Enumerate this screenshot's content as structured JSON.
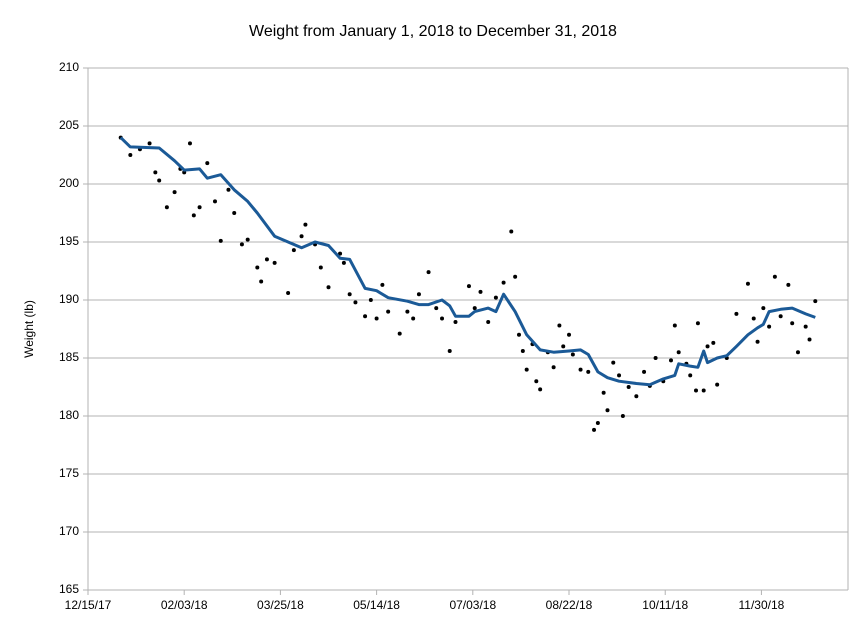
{
  "chart_data": {
    "type": "scatter",
    "title": "Weight from January 1, 2018 to December 31, 2018",
    "y_label": "Weight (lb)",
    "xlim": [
      "2017-12-15",
      "2019-01-14"
    ],
    "xticks": [
      {
        "value": "2017-12-15",
        "label": "12/15/17"
      },
      {
        "value": "2018-02-03",
        "label": "02/03/18"
      },
      {
        "value": "2018-03-25",
        "label": "03/25/18"
      },
      {
        "value": "2018-05-14",
        "label": "05/14/18"
      },
      {
        "value": "2018-07-03",
        "label": "07/03/18"
      },
      {
        "value": "2018-08-22",
        "label": "08/22/18"
      },
      {
        "value": "2018-10-11",
        "label": "10/11/18"
      },
      {
        "value": "2018-11-30",
        "label": "11/30/18"
      }
    ],
    "ylim": [
      165,
      210
    ],
    "yticks": [
      165,
      170,
      175,
      180,
      185,
      190,
      195,
      200,
      205,
      210
    ],
    "grid": true,
    "series": [
      {
        "mode": "markers",
        "color": "#000000",
        "x": [
          "2018-01-01",
          "2018-01-06",
          "2018-01-11",
          "2018-01-16",
          "2018-01-19",
          "2018-01-21",
          "2018-01-25",
          "2018-01-29",
          "2018-02-01",
          "2018-02-03",
          "2018-02-06",
          "2018-02-08",
          "2018-02-11",
          "2018-02-15",
          "2018-02-19",
          "2018-02-22",
          "2018-02-26",
          "2018-03-01",
          "2018-03-05",
          "2018-03-08",
          "2018-03-13",
          "2018-03-15",
          "2018-03-18",
          "2018-03-22",
          "2018-03-29",
          "2018-04-01",
          "2018-04-05",
          "2018-04-07",
          "2018-04-12",
          "2018-04-15",
          "2018-04-19",
          "2018-04-25",
          "2018-04-27",
          "2018-04-30",
          "2018-05-03",
          "2018-05-08",
          "2018-05-11",
          "2018-05-14",
          "2018-05-17",
          "2018-05-20",
          "2018-05-26",
          "2018-05-30",
          "2018-06-02",
          "2018-06-05",
          "2018-06-10",
          "2018-06-14",
          "2018-06-17",
          "2018-06-21",
          "2018-06-24",
          "2018-07-01",
          "2018-07-04",
          "2018-07-07",
          "2018-07-11",
          "2018-07-15",
          "2018-07-19",
          "2018-07-23",
          "2018-07-25",
          "2018-07-27",
          "2018-07-29",
          "2018-07-31",
          "2018-08-03",
          "2018-08-05",
          "2018-08-07",
          "2018-08-11",
          "2018-08-14",
          "2018-08-17",
          "2018-08-19",
          "2018-08-22",
          "2018-08-24",
          "2018-08-28",
          "2018-09-01",
          "2018-09-04",
          "2018-09-06",
          "2018-09-09",
          "2018-09-11",
          "2018-09-14",
          "2018-09-17",
          "2018-09-19",
          "2018-09-22",
          "2018-09-26",
          "2018-09-30",
          "2018-10-03",
          "2018-10-06",
          "2018-10-10",
          "2018-10-14",
          "2018-10-16",
          "2018-10-18",
          "2018-10-22",
          "2018-10-24",
          "2018-10-27",
          "2018-10-28",
          "2018-10-31",
          "2018-11-02",
          "2018-11-05",
          "2018-11-07",
          "2018-11-12",
          "2018-11-17",
          "2018-11-23",
          "2018-11-26",
          "2018-11-28",
          "2018-12-01",
          "2018-12-04",
          "2018-12-07",
          "2018-12-10",
          "2018-12-14",
          "2018-12-16",
          "2018-12-19",
          "2018-12-23",
          "2018-12-25",
          "2018-12-28"
        ],
        "values": [
          204.0,
          202.5,
          203.0,
          203.5,
          201.0,
          200.3,
          198.0,
          199.3,
          201.3,
          201.0,
          203.5,
          197.3,
          198.0,
          201.8,
          198.5,
          195.1,
          199.5,
          197.5,
          194.8,
          195.2,
          192.8,
          191.6,
          193.5,
          193.2,
          190.6,
          194.3,
          195.5,
          196.5,
          194.8,
          192.8,
          191.1,
          194.0,
          193.2,
          190.5,
          189.8,
          188.6,
          190.0,
          188.4,
          191.3,
          189.0,
          187.1,
          189.0,
          188.4,
          190.5,
          192.4,
          189.3,
          188.4,
          185.6,
          188.1,
          191.2,
          189.3,
          190.7,
          188.1,
          190.2,
          191.5,
          195.9,
          192.0,
          187.0,
          185.6,
          184.0,
          186.2,
          183.0,
          182.3,
          185.5,
          184.2,
          187.8,
          186.0,
          187.0,
          185.3,
          184.0,
          183.8,
          178.8,
          179.4,
          182.0,
          180.5,
          184.6,
          183.5,
          180.0,
          182.5,
          181.7,
          183.8,
          182.6,
          185.0,
          183.0,
          184.8,
          187.8,
          185.5,
          184.5,
          183.5,
          182.2,
          188.0,
          182.2,
          186.0,
          186.3,
          182.7,
          185.0,
          188.8,
          191.4,
          188.4,
          186.4,
          189.3,
          187.7,
          192.0,
          188.6,
          191.3,
          188.0,
          185.5,
          187.7,
          186.6,
          189.9
        ]
      },
      {
        "mode": "line",
        "color": "#1b5a97",
        "x": [
          "2018-01-01",
          "2018-01-06",
          "2018-01-21",
          "2018-01-29",
          "2018-02-03",
          "2018-02-11",
          "2018-02-15",
          "2018-02-22",
          "2018-03-01",
          "2018-03-08",
          "2018-03-13",
          "2018-03-22",
          "2018-03-29",
          "2018-04-05",
          "2018-04-12",
          "2018-04-19",
          "2018-04-25",
          "2018-04-30",
          "2018-05-08",
          "2018-05-14",
          "2018-05-20",
          "2018-05-30",
          "2018-06-05",
          "2018-06-10",
          "2018-06-17",
          "2018-06-21",
          "2018-06-24",
          "2018-07-01",
          "2018-07-04",
          "2018-07-11",
          "2018-07-15",
          "2018-07-19",
          "2018-07-25",
          "2018-07-31",
          "2018-08-07",
          "2018-08-14",
          "2018-08-22",
          "2018-08-28",
          "2018-09-01",
          "2018-09-06",
          "2018-09-11",
          "2018-09-17",
          "2018-09-26",
          "2018-10-03",
          "2018-10-10",
          "2018-10-16",
          "2018-10-18",
          "2018-10-24",
          "2018-10-28",
          "2018-10-31",
          "2018-11-02",
          "2018-11-07",
          "2018-11-12",
          "2018-11-17",
          "2018-11-23",
          "2018-11-28",
          "2018-12-01",
          "2018-12-04",
          "2018-12-10",
          "2018-12-16",
          "2018-12-23",
          "2018-12-28"
        ],
        "values": [
          204.0,
          203.2,
          203.1,
          202.0,
          201.2,
          201.3,
          200.5,
          200.8,
          199.5,
          198.5,
          197.5,
          195.5,
          195.0,
          194.5,
          195.0,
          194.7,
          193.6,
          193.5,
          191.0,
          190.8,
          190.2,
          189.9,
          189.6,
          189.6,
          190.0,
          189.5,
          188.6,
          188.6,
          189.0,
          189.3,
          189.0,
          190.5,
          189.0,
          187.0,
          185.7,
          185.5,
          185.6,
          185.7,
          185.3,
          183.8,
          183.3,
          183.0,
          182.8,
          182.7,
          183.2,
          183.5,
          184.5,
          184.3,
          184.2,
          185.6,
          184.6,
          185.0,
          185.2,
          186.0,
          187.0,
          187.6,
          187.9,
          189.0,
          189.2,
          189.3,
          188.8,
          188.5
        ]
      }
    ]
  }
}
